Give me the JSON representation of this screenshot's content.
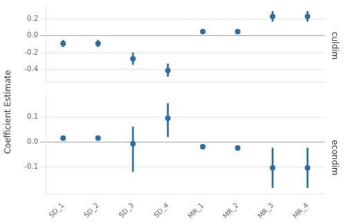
{
  "chart_data": [
    {
      "type": "scatter",
      "title": "culdim",
      "ylabel": "Coefficient Estimate",
      "categories": [
        "SD_1",
        "SD_2",
        "SD_3",
        "SD_4",
        "MR_1",
        "MR_2",
        "MR_3",
        "MR_4"
      ],
      "values": [
        -0.09,
        -0.09,
        -0.27,
        -0.41,
        0.05,
        0.05,
        0.23,
        0.23
      ],
      "ci_low": [
        -0.13,
        -0.13,
        -0.34,
        -0.48,
        0.03,
        0.03,
        0.17,
        0.17
      ],
      "ci_high": [
        -0.05,
        -0.05,
        -0.2,
        -0.33,
        0.07,
        0.07,
        0.29,
        0.29
      ],
      "color": "#2e6d9e",
      "ylim": [
        -0.54,
        0.35
      ],
      "yticks": [
        -0.4,
        -0.2,
        {
          "value": 0.0,
          "label": "0.0"
        },
        0.2
      ],
      "grid": true,
      "tick_labels": "y"
    },
    {
      "type": "scatter",
      "title": "econdim",
      "categories": [
        "SD_1",
        "SD_2",
        "SD_3",
        "SD_4",
        "MR_1",
        "MR_2",
        "MR_3",
        "MR_4"
      ],
      "values": [
        0.015,
        0.015,
        -0.008,
        0.095,
        -0.02,
        -0.025,
        -0.105,
        -0.105
      ],
      "ci_low": [
        0.008,
        0.008,
        -0.12,
        0.02,
        -0.03,
        -0.035,
        -0.185,
        -0.185
      ],
      "ci_high": [
        0.022,
        0.022,
        0.06,
        0.155,
        -0.01,
        -0.015,
        -0.025,
        -0.025
      ],
      "color": "#2e6d9e",
      "ylim": [
        -0.21,
        0.19
      ],
      "yticks": [
        -0.1,
        {
          "value": 0.0,
          "label": "0.0"
        },
        0.1
      ],
      "grid": true
    }
  ]
}
